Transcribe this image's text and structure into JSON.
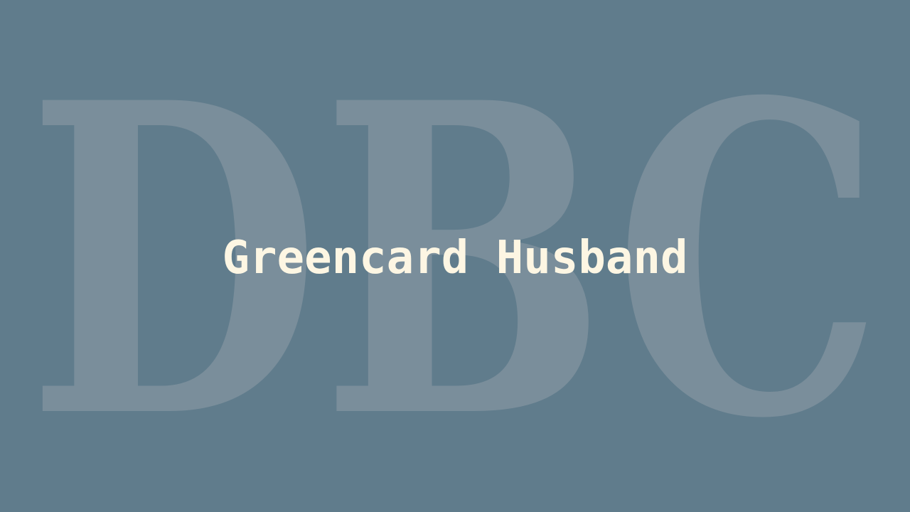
{
  "background_color": "#607c8c",
  "watermark": {
    "text": "DBC",
    "color": "#7a8e9b"
  },
  "title": {
    "text": "Greencard Husband",
    "color": "#fdf6e3"
  }
}
